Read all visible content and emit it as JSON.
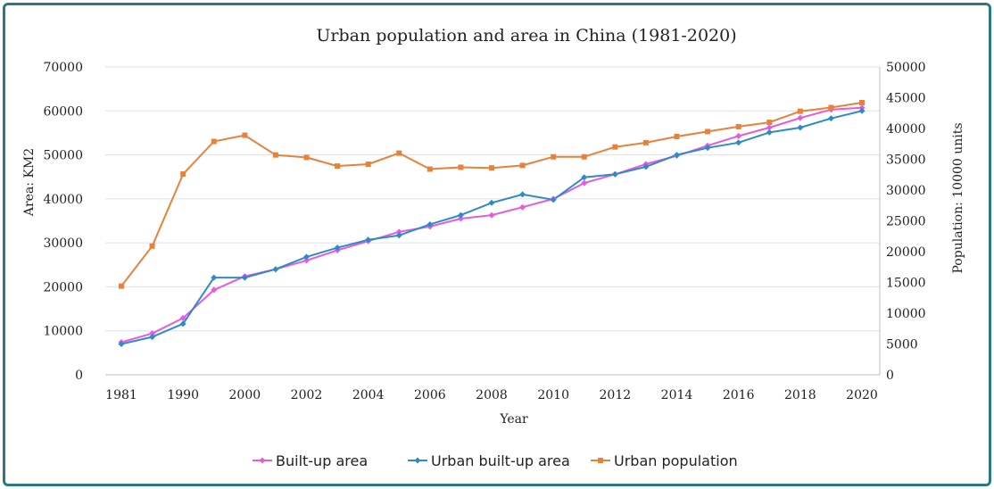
{
  "chart_data": {
    "type": "line",
    "title": "Urban population and area in China (1981-2020)",
    "xlabel": "Year",
    "ylabel_left": "Area: KM2",
    "ylabel_right": "Population: 10000 units",
    "ylim_left": [
      0,
      70000
    ],
    "ylim_right": [
      0,
      50000
    ],
    "y_ticks_left": [
      "0",
      "10000",
      "20000",
      "30000",
      "40000",
      "50000",
      "60000",
      "70000"
    ],
    "y_ticks_right": [
      "0",
      "5000",
      "10000",
      "15000",
      "20000",
      "25000",
      "30000",
      "35000",
      "40000",
      "45000",
      "50000"
    ],
    "x_ticks": [
      "1981",
      "1990",
      "2000",
      "2002",
      "2004",
      "2006",
      "2008",
      "2010",
      "2012",
      "2014",
      "2016",
      "2018",
      "2020"
    ],
    "categories": [
      "1981",
      "1985",
      "1990",
      "1995",
      "2000",
      "2001",
      "2002",
      "2003",
      "2004",
      "2005",
      "2006",
      "2007",
      "2008",
      "2009",
      "2010",
      "2011",
      "2012",
      "2013",
      "2014",
      "2015",
      "2016",
      "2017",
      "2018",
      "2019",
      "2020"
    ],
    "grid": true,
    "legend_position": "bottom",
    "series": [
      {
        "name": "Built-up area",
        "axis": "left",
        "color": "#e55be0",
        "marker": "diamond",
        "values": [
          7400,
          9400,
          12900,
          19300,
          22400,
          24000,
          26000,
          28300,
          30400,
          32500,
          33700,
          35500,
          36300,
          38100,
          40000,
          43600,
          45600,
          47900,
          49800,
          52100,
          54300,
          56200,
          58400,
          60300,
          60700
        ]
      },
      {
        "name": "Urban built-up area",
        "axis": "left",
        "color": "#2e8bc9",
        "marker": "diamond",
        "values": [
          7000,
          8600,
          11600,
          22100,
          22100,
          24000,
          26800,
          28900,
          30700,
          31700,
          34200,
          36300,
          39100,
          41000,
          39800,
          44900,
          45600,
          47300,
          50000,
          51600,
          52800,
          55100,
          56200,
          58300,
          60000
        ]
      },
      {
        "name": "Urban population",
        "axis": "right",
        "color": "#e8823a",
        "marker": "square",
        "values": [
          14400,
          20900,
          32600,
          37900,
          38900,
          35700,
          35300,
          33900,
          34200,
          36000,
          33400,
          33700,
          33600,
          34000,
          35400,
          35400,
          37000,
          37700,
          38700,
          39500,
          40300,
          41000,
          42800,
          43400,
          44200
        ]
      }
    ]
  }
}
